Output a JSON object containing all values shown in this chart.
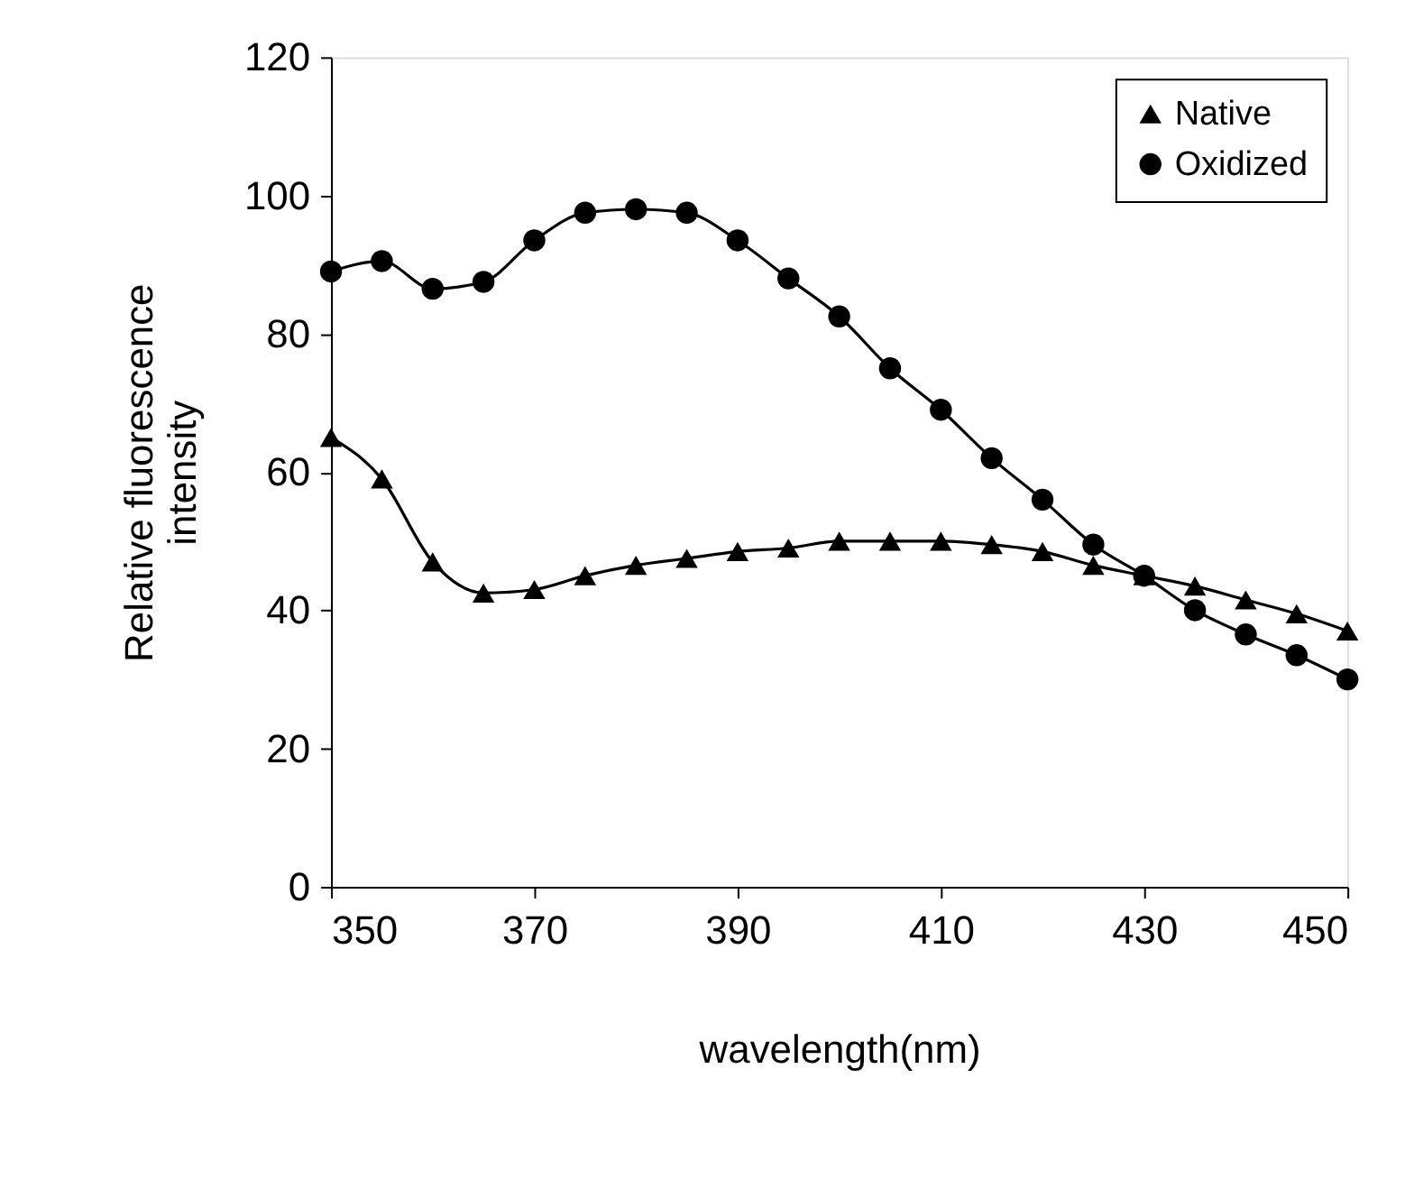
{
  "chart_data": {
    "type": "line",
    "xlabel": "wavelength(nm)",
    "ylabel": "Relative fluorescence intensity",
    "x": [
      350,
      355,
      360,
      365,
      370,
      375,
      380,
      385,
      390,
      395,
      400,
      405,
      410,
      415,
      420,
      425,
      430,
      435,
      440,
      445,
      450
    ],
    "series": [
      {
        "name": "Native",
        "color": "#000000",
        "marker": "triangle",
        "values": [
          65,
          59,
          47,
          42.5,
          43,
          45,
          46.5,
          47.5,
          48.5,
          49,
          50,
          50,
          50,
          49.5,
          48.5,
          46.5,
          45,
          43.5,
          41.5,
          39.5,
          37
        ]
      },
      {
        "name": "Oxidized",
        "color": "#000000",
        "marker": "circle",
        "values": [
          89,
          90.5,
          86.5,
          87.5,
          93.5,
          97.5,
          98,
          97.5,
          93.5,
          88,
          82.5,
          75,
          69,
          62,
          56,
          49.5,
          45,
          40,
          36.5,
          33.5,
          30
        ]
      }
    ],
    "xlim": [
      350,
      450
    ],
    "xticks": [
      350,
      370,
      390,
      410,
      430,
      450
    ],
    "ylim": [
      0,
      120
    ],
    "yticks": [
      0,
      20,
      40,
      60,
      80,
      100,
      120
    ],
    "grid": false,
    "legend": "top right",
    "line_style": "solid"
  }
}
